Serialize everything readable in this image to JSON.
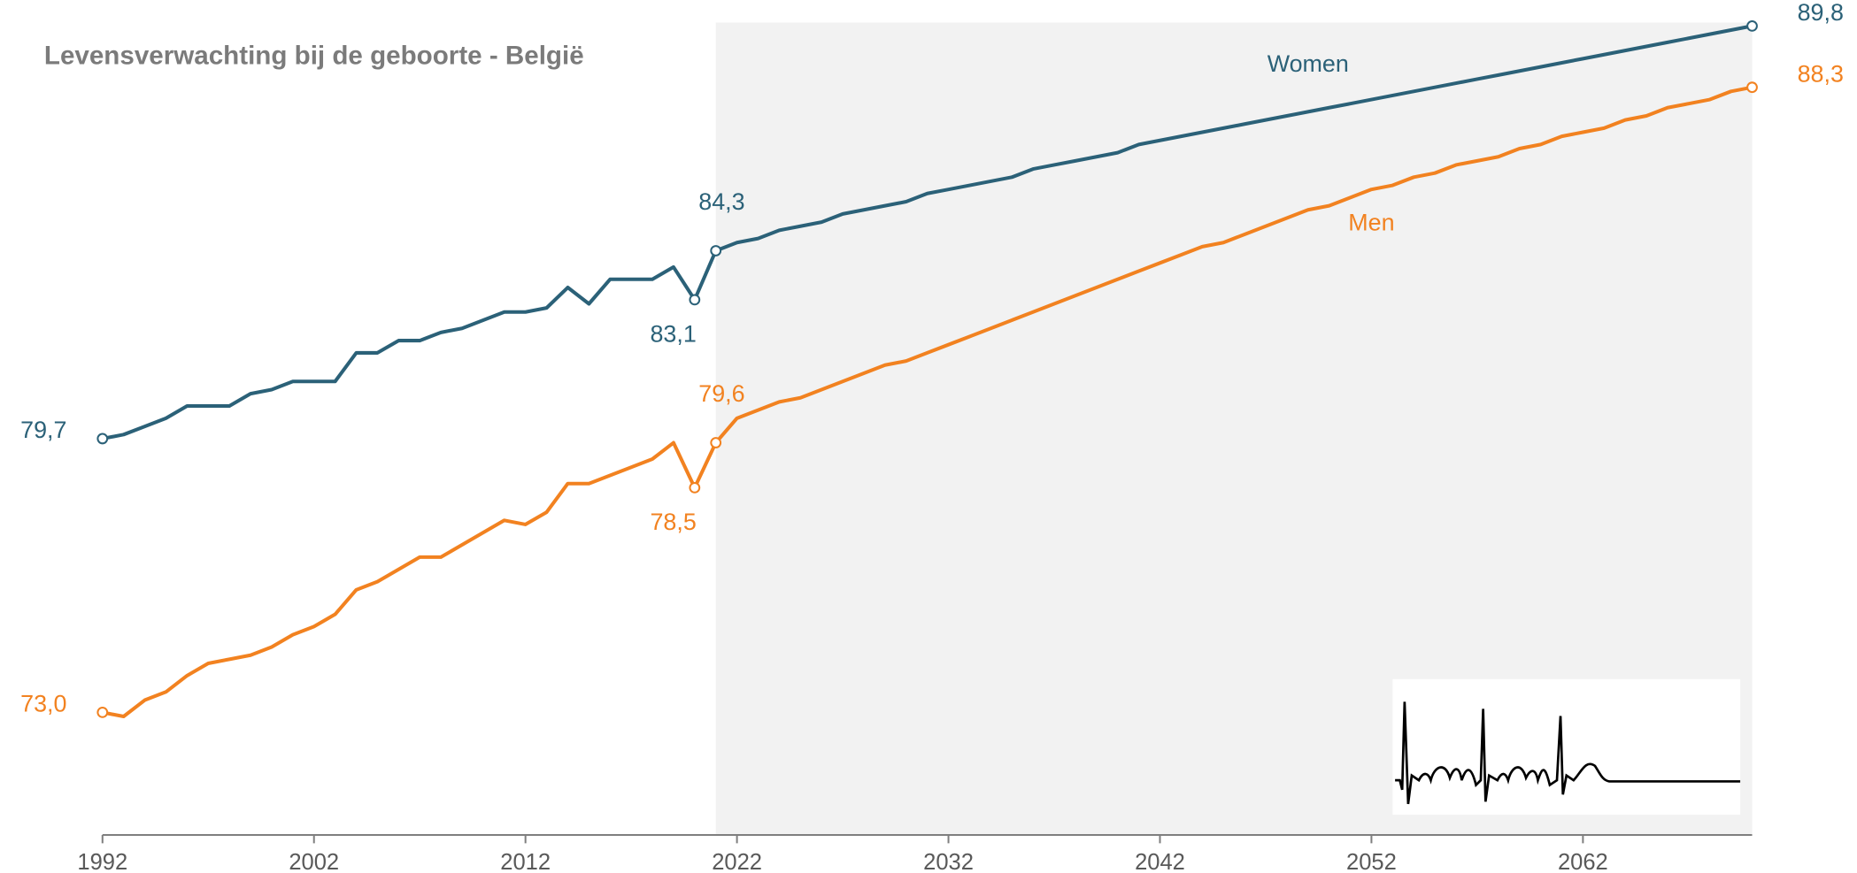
{
  "chart_data": {
    "type": "line",
    "title": "Levensverwachting bij de geboorte - België",
    "x": [
      1992,
      1993,
      1994,
      1995,
      1996,
      1997,
      1998,
      1999,
      2000,
      2001,
      2002,
      2003,
      2004,
      2005,
      2006,
      2007,
      2008,
      2009,
      2010,
      2011,
      2012,
      2013,
      2014,
      2015,
      2016,
      2017,
      2018,
      2019,
      2020,
      2021,
      2022,
      2023,
      2024,
      2025,
      2026,
      2027,
      2028,
      2029,
      2030,
      2031,
      2032,
      2033,
      2034,
      2035,
      2036,
      2037,
      2038,
      2039,
      2040,
      2041,
      2042,
      2043,
      2044,
      2045,
      2046,
      2047,
      2048,
      2049,
      2050,
      2051,
      2052,
      2053,
      2054,
      2055,
      2056,
      2057,
      2058,
      2059,
      2060,
      2061,
      2062,
      2063,
      2064,
      2065,
      2066,
      2067,
      2068,
      2069,
      2070
    ],
    "series": [
      {
        "name": "Women",
        "color": "#2b6178",
        "values": [
          79.7,
          79.8,
          80.0,
          80.2,
          80.5,
          80.5,
          80.5,
          80.8,
          80.9,
          81.1,
          81.1,
          81.1,
          81.8,
          81.8,
          82.1,
          82.1,
          82.3,
          82.4,
          82.6,
          82.8,
          82.8,
          82.9,
          83.4,
          83.0,
          83.6,
          83.6,
          83.6,
          83.9,
          83.1,
          84.3,
          84.5,
          84.6,
          84.8,
          84.9,
          85.0,
          85.2,
          85.3,
          85.4,
          85.5,
          85.7,
          85.8,
          85.9,
          86.0,
          86.1,
          86.3,
          86.4,
          86.5,
          86.6,
          86.7,
          86.9,
          87.0,
          87.1,
          87.2,
          87.3,
          87.4,
          87.5,
          87.6,
          87.7,
          87.8,
          87.9,
          88.0,
          88.1,
          88.2,
          88.3,
          88.4,
          88.5,
          88.6,
          88.7,
          88.8,
          88.9,
          89.0,
          89.1,
          89.2,
          89.3,
          89.4,
          89.5,
          89.6,
          89.7,
          89.8
        ],
        "value_labels": [
          "79,7",
          null,
          null,
          null,
          null,
          null,
          null,
          null,
          null,
          null,
          null,
          null,
          null,
          null,
          null,
          null,
          null,
          null,
          null,
          null,
          null,
          null,
          null,
          null,
          null,
          null,
          null,
          null,
          "83,1",
          "84,3",
          null,
          null,
          null,
          null,
          null,
          null,
          null,
          null,
          null,
          null,
          null,
          null,
          null,
          null,
          null,
          null,
          null,
          null,
          null,
          null,
          null,
          null,
          null,
          null,
          null,
          null,
          null,
          null,
          null,
          null,
          null,
          null,
          null,
          null,
          null,
          null,
          null,
          null,
          null,
          null,
          null,
          null,
          null,
          null,
          null,
          null,
          null,
          null,
          "89,8"
        ]
      },
      {
        "name": "Men",
        "color": "#f28220",
        "values": [
          73.0,
          72.9,
          73.3,
          73.5,
          73.9,
          74.2,
          74.3,
          74.4,
          74.6,
          74.9,
          75.1,
          75.4,
          76.0,
          76.2,
          76.5,
          76.8,
          76.8,
          77.1,
          77.4,
          77.7,
          77.6,
          77.9,
          78.6,
          78.6,
          78.8,
          79.0,
          79.2,
          79.6,
          78.5,
          79.6,
          80.2,
          80.4,
          80.6,
          80.7,
          80.9,
          81.1,
          81.3,
          81.5,
          81.6,
          81.8,
          82.0,
          82.2,
          82.4,
          82.6,
          82.8,
          83.0,
          83.2,
          83.4,
          83.6,
          83.8,
          84.0,
          84.2,
          84.4,
          84.5,
          84.7,
          84.9,
          85.1,
          85.3,
          85.4,
          85.6,
          85.8,
          85.9,
          86.1,
          86.2,
          86.4,
          86.5,
          86.6,
          86.8,
          86.9,
          87.1,
          87.2,
          87.3,
          87.5,
          87.6,
          87.8,
          87.9,
          88.0,
          88.2,
          88.3
        ],
        "value_labels": [
          "73,0",
          null,
          null,
          null,
          null,
          null,
          null,
          null,
          null,
          null,
          null,
          null,
          null,
          null,
          null,
          null,
          null,
          null,
          null,
          null,
          null,
          null,
          null,
          null,
          null,
          null,
          null,
          null,
          "78,5",
          "79,6",
          null,
          null,
          null,
          null,
          null,
          null,
          null,
          null,
          null,
          null,
          null,
          null,
          null,
          null,
          null,
          null,
          null,
          null,
          null,
          null,
          null,
          null,
          null,
          null,
          null,
          null,
          null,
          null,
          null,
          null,
          null,
          null,
          null,
          null,
          null,
          null,
          null,
          null,
          null,
          null,
          null,
          null,
          null,
          null,
          null,
          null,
          null,
          null,
          "88,3"
        ]
      }
    ],
    "xlim": [
      1992,
      2070
    ],
    "xticks": [
      1992,
      2002,
      2012,
      2022,
      2032,
      2042,
      2052,
      2062
    ],
    "ylim": [
      70,
      90
    ],
    "shaded_from": 2021
  }
}
